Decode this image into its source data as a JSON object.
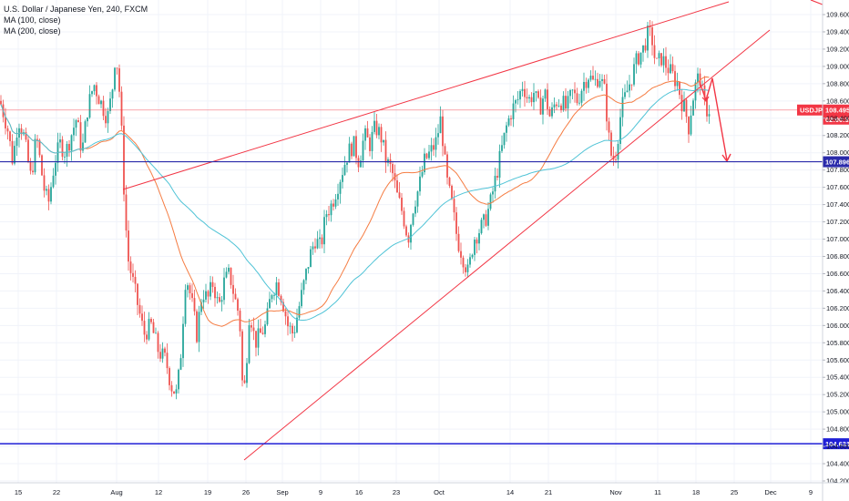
{
  "chart_data": {
    "type": "candlestick",
    "symbol": "USDJPY",
    "title": "U.S. Dollar / Japanese Yen, 240, FXCM",
    "indicators": [
      "MA (100, close)",
      "MA (200, close)"
    ],
    "ylim": [
      104.2,
      109.6
    ],
    "y_ticks": [
      "109.600",
      "109.400",
      "109.200",
      "109.000",
      "108.800",
      "108.600",
      "108.400",
      "108.200",
      "108.000",
      "107.800",
      "107.600",
      "107.400",
      "107.200",
      "107.000",
      "106.800",
      "106.600",
      "106.400",
      "106.200",
      "106.000",
      "105.800",
      "105.600",
      "105.400",
      "105.200",
      "105.000",
      "104.800",
      "104.600",
      "104.400",
      "104.200"
    ],
    "x_labels": [
      "15",
      "22",
      "Aug",
      "12",
      "19",
      "26",
      "Sep",
      "9",
      "16",
      "23",
      "Oct",
      "14",
      "21",
      "Nov",
      "11",
      "18",
      "25",
      "Dec",
      "9"
    ],
    "last_price": {
      "label": "USDJPY",
      "value": "108.495",
      "value_num": 108.495,
      "countdown": "02:00:34",
      "color": "#f23645"
    },
    "horizontal_levels": [
      {
        "value": "107.896",
        "value_num": 107.896,
        "color": "#2a2aaa"
      },
      {
        "value": "104.631",
        "value_num": 104.631,
        "color": "#1f1fd6"
      }
    ],
    "ohlc_anchors": [
      {
        "x": 0,
        "close": 108.6
      },
      {
        "x": 8,
        "close": 108.3
      },
      {
        "x": 14,
        "close": 107.9
      },
      {
        "x": 20,
        "close": 108.4
      },
      {
        "x": 26,
        "close": 108.2
      },
      {
        "x": 34,
        "close": 107.7
      },
      {
        "x": 40,
        "close": 108.2
      },
      {
        "x": 48,
        "close": 107.6
      },
      {
        "x": 53,
        "close": 107.4
      },
      {
        "x": 60,
        "close": 107.9
      },
      {
        "x": 66,
        "close": 108.1
      },
      {
        "x": 72,
        "close": 108.0
      },
      {
        "x": 78,
        "close": 108.2
      },
      {
        "x": 84,
        "close": 108.4
      },
      {
        "x": 90,
        "close": 108.0
      },
      {
        "x": 96,
        "close": 108.5
      },
      {
        "x": 103,
        "close": 108.8
      },
      {
        "x": 110,
        "close": 108.6
      },
      {
        "x": 118,
        "close": 108.4
      },
      {
        "x": 123,
        "close": 108.7
      },
      {
        "x": 127,
        "close": 109.2
      },
      {
        "x": 132,
        "close": 108.6
      },
      {
        "x": 136,
        "close": 107.6
      },
      {
        "x": 140,
        "close": 106.8
      },
      {
        "x": 146,
        "close": 106.5
      },
      {
        "x": 152,
        "close": 106.2
      },
      {
        "x": 158,
        "close": 105.9
      },
      {
        "x": 166,
        "close": 106.0
      },
      {
        "x": 174,
        "close": 105.7
      },
      {
        "x": 182,
        "close": 105.6
      },
      {
        "x": 188,
        "close": 105.3
      },
      {
        "x": 194,
        "close": 105.2
      },
      {
        "x": 198,
        "close": 105.6
      },
      {
        "x": 204,
        "close": 106.6
      },
      {
        "x": 210,
        "close": 106.3
      },
      {
        "x": 216,
        "close": 105.9
      },
      {
        "x": 222,
        "close": 106.4
      },
      {
        "x": 228,
        "close": 106.3
      },
      {
        "x": 234,
        "close": 106.5
      },
      {
        "x": 240,
        "close": 106.2
      },
      {
        "x": 246,
        "close": 106.5
      },
      {
        "x": 252,
        "close": 106.6
      },
      {
        "x": 258,
        "close": 106.3
      },
      {
        "x": 263,
        "close": 106.1
      },
      {
        "x": 267,
        "close": 105.1
      },
      {
        "x": 270,
        "close": 105.5
      },
      {
        "x": 274,
        "close": 106.2
      },
      {
        "x": 280,
        "close": 105.8
      },
      {
        "x": 286,
        "close": 105.9
      },
      {
        "x": 292,
        "close": 106.0
      },
      {
        "x": 298,
        "close": 106.4
      },
      {
        "x": 304,
        "close": 106.5
      },
      {
        "x": 310,
        "close": 106.3
      },
      {
        "x": 316,
        "close": 106.0
      },
      {
        "x": 322,
        "close": 105.9
      },
      {
        "x": 328,
        "close": 106.2
      },
      {
        "x": 334,
        "close": 106.5
      },
      {
        "x": 340,
        "close": 106.8
      },
      {
        "x": 346,
        "close": 107.0
      },
      {
        "x": 352,
        "close": 106.9
      },
      {
        "x": 358,
        "close": 107.3
      },
      {
        "x": 364,
        "close": 107.4
      },
      {
        "x": 370,
        "close": 107.6
      },
      {
        "x": 376,
        "close": 107.8
      },
      {
        "x": 382,
        "close": 108.0
      },
      {
        "x": 388,
        "close": 108.1
      },
      {
        "x": 394,
        "close": 107.9
      },
      {
        "x": 400,
        "close": 108.2
      },
      {
        "x": 406,
        "close": 108.1
      },
      {
        "x": 412,
        "close": 108.3
      },
      {
        "x": 418,
        "close": 108.2
      },
      {
        "x": 424,
        "close": 107.9
      },
      {
        "x": 430,
        "close": 107.8
      },
      {
        "x": 436,
        "close": 107.5
      },
      {
        "x": 442,
        "close": 107.3
      },
      {
        "x": 448,
        "close": 107.0
      },
      {
        "x": 454,
        "close": 107.4
      },
      {
        "x": 460,
        "close": 107.6
      },
      {
        "x": 466,
        "close": 107.9
      },
      {
        "x": 472,
        "close": 108.0
      },
      {
        "x": 478,
        "close": 108.1
      },
      {
        "x": 484,
        "close": 108.4
      },
      {
        "x": 490,
        "close": 107.7
      },
      {
        "x": 496,
        "close": 107.4
      },
      {
        "x": 502,
        "close": 107.0
      },
      {
        "x": 508,
        "close": 106.8
      },
      {
        "x": 514,
        "close": 106.6
      },
      {
        "x": 520,
        "close": 107.0
      },
      {
        "x": 526,
        "close": 107.1
      },
      {
        "x": 532,
        "close": 107.2
      },
      {
        "x": 538,
        "close": 107.4
      },
      {
        "x": 544,
        "close": 107.7
      },
      {
        "x": 550,
        "close": 108.0
      },
      {
        "x": 556,
        "close": 108.3
      },
      {
        "x": 562,
        "close": 108.5
      },
      {
        "x": 568,
        "close": 108.6
      },
      {
        "x": 574,
        "close": 108.8
      },
      {
        "x": 580,
        "close": 108.6
      },
      {
        "x": 586,
        "close": 108.7
      },
      {
        "x": 592,
        "close": 108.5
      },
      {
        "x": 598,
        "close": 108.7
      },
      {
        "x": 604,
        "close": 108.4
      },
      {
        "x": 610,
        "close": 108.6
      },
      {
        "x": 616,
        "close": 108.6
      },
      {
        "x": 622,
        "close": 108.5
      },
      {
        "x": 628,
        "close": 108.7
      },
      {
        "x": 634,
        "close": 108.6
      },
      {
        "x": 640,
        "close": 108.8
      },
      {
        "x": 646,
        "close": 108.9
      },
      {
        "x": 652,
        "close": 108.8
      },
      {
        "x": 658,
        "close": 108.9
      },
      {
        "x": 664,
        "close": 108.7
      },
      {
        "x": 668,
        "close": 108.2
      },
      {
        "x": 672,
        "close": 107.9
      },
      {
        "x": 676,
        "close": 108.0
      },
      {
        "x": 682,
        "close": 108.5
      },
      {
        "x": 688,
        "close": 108.7
      },
      {
        "x": 694,
        "close": 108.9
      },
      {
        "x": 700,
        "close": 109.1
      },
      {
        "x": 706,
        "close": 109.2
      },
      {
        "x": 712,
        "close": 109.4
      },
      {
        "x": 716,
        "close": 109.3
      },
      {
        "x": 720,
        "close": 109.0
      },
      {
        "x": 726,
        "close": 109.1
      },
      {
        "x": 732,
        "close": 109.0
      },
      {
        "x": 738,
        "close": 108.9
      },
      {
        "x": 744,
        "close": 108.8
      },
      {
        "x": 748,
        "close": 108.6
      },
      {
        "x": 752,
        "close": 108.5
      },
      {
        "x": 756,
        "close": 108.3
      },
      {
        "x": 760,
        "close": 108.6
      },
      {
        "x": 764,
        "close": 108.8
      },
      {
        "x": 768,
        "close": 108.9
      },
      {
        "x": 772,
        "close": 108.6
      },
      {
        "x": 776,
        "close": 108.5
      },
      {
        "x": 780,
        "close": 108.5
      }
    ]
  },
  "colors": {
    "up": "#26a69a",
    "down": "#ef5350",
    "ma100": "#f57c42",
    "ma200": "#4fc3d6",
    "trend": "#f23645",
    "level": "#2a2aaa"
  }
}
